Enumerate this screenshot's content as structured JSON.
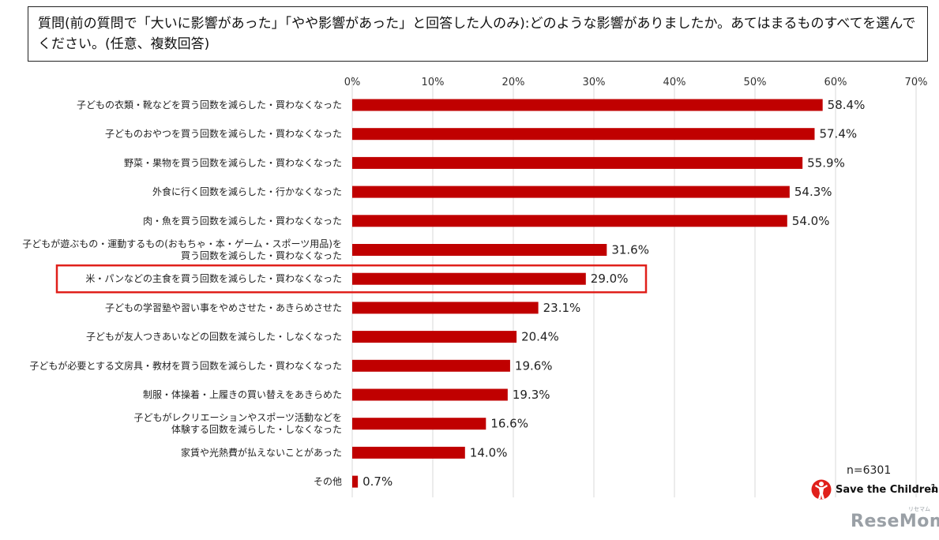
{
  "question": {
    "text": "質問(前の質問で「大いに影響があった」「やや影響があった」と回答した人のみ):どのような影響がありましたか。あてはまるものすべてを選んでください。(任意、複数回答)"
  },
  "chart_data": {
    "type": "bar",
    "orientation": "horizontal",
    "title": "",
    "xlabel": "",
    "ylabel": "",
    "xlim": [
      0,
      70
    ],
    "ticks": [
      "0%",
      "10%",
      "20%",
      "30%",
      "40%",
      "50%",
      "60%",
      "70%"
    ],
    "categories": [
      [
        "子どもの衣類・靴などを買う回数を減らした・買わなくなった"
      ],
      [
        "子どものおやつを買う回数を減らした・買わなくなった"
      ],
      [
        "野菜・果物を買う回数を減らした・買わなくなった"
      ],
      [
        "外食に行く回数を減らした・行かなくなった"
      ],
      [
        "肉・魚を買う回数を減らした・買わなくなった"
      ],
      [
        "子どもが遊ぶもの・運動するもの(おもちゃ・本・ゲーム・スポーツ用品)を",
        "買う回数を減らした・買わなくなった"
      ],
      [
        "米・パンなどの主食を買う回数を減らした・買わなくなった"
      ],
      [
        "子どもの学習塾や習い事をやめさせた・あきらめさせた"
      ],
      [
        "子どもが友人つきあいなどの回数を減らした・しなくなった"
      ],
      [
        "子どもが必要とする文房具・教材を買う回数を減らした・買わなくなった"
      ],
      [
        "制服・体操着・上履きの買い替えをあきらめた"
      ],
      [
        "子どもがレクリエーションやスポーツ活動などを",
        "体験する回数を減らした・しなくなった"
      ],
      [
        "家賃や光熱費が払えないことがあった"
      ],
      [
        "その他"
      ]
    ],
    "values": [
      58.4,
      57.4,
      55.9,
      54.3,
      54.0,
      31.6,
      29.0,
      23.1,
      20.4,
      19.6,
      19.3,
      16.6,
      14.0,
      0.7
    ],
    "value_labels": [
      "58.4%",
      "57.4%",
      "55.9%",
      "54.3%",
      "54.0%",
      "31.6%",
      "29.0%",
      "23.1%",
      "20.4%",
      "19.6%",
      "19.3%",
      "16.6%",
      "14.0%",
      "0.7%"
    ],
    "highlighted_index": 6,
    "bar_color": "#c00000",
    "highlight_color": "#e0201b",
    "grid": true
  },
  "sample_size": "n=6301",
  "logo": {
    "text": "Save the Children",
    "color": "#e0201b"
  },
  "page_number": "1",
  "watermark": {
    "text": "ReseMom",
    "ruby": "リセマム"
  }
}
